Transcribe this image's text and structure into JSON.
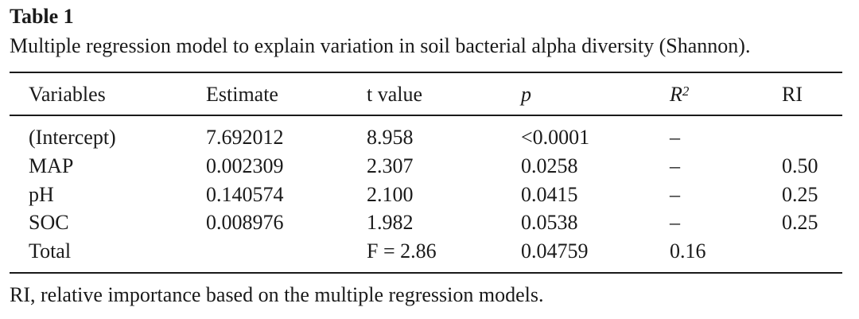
{
  "title": "Table 1",
  "caption": "Multiple regression model to explain variation in soil bacterial alpha diversity (Shannon).",
  "columns": {
    "variables": "Variables",
    "estimate": "Estimate",
    "t_value": "t value",
    "p": "p",
    "r2_base": "R",
    "r2_sup": "2",
    "ri": "RI"
  },
  "rows": [
    {
      "variable": "(Intercept)",
      "estimate": "7.692012",
      "t_value": "8.958",
      "p": "<0.0001",
      "r2": "–",
      "ri": ""
    },
    {
      "variable": "MAP",
      "estimate": "0.002309",
      "t_value": "2.307",
      "p": "0.0258",
      "r2": "–",
      "ri": "0.50"
    },
    {
      "variable": "pH",
      "estimate": "0.140574",
      "t_value": "2.100",
      "p": "0.0415",
      "r2": "–",
      "ri": "0.25"
    },
    {
      "variable": "SOC",
      "estimate": "0.008976",
      "t_value": "1.982",
      "p": "0.0538",
      "r2": "–",
      "ri": "0.25"
    },
    {
      "variable": "Total",
      "estimate": "",
      "t_value": "F = 2.86",
      "p": "0.04759",
      "r2": "0.16",
      "ri": ""
    }
  ],
  "footnote": "RI, relative importance based on the multiple regression models."
}
